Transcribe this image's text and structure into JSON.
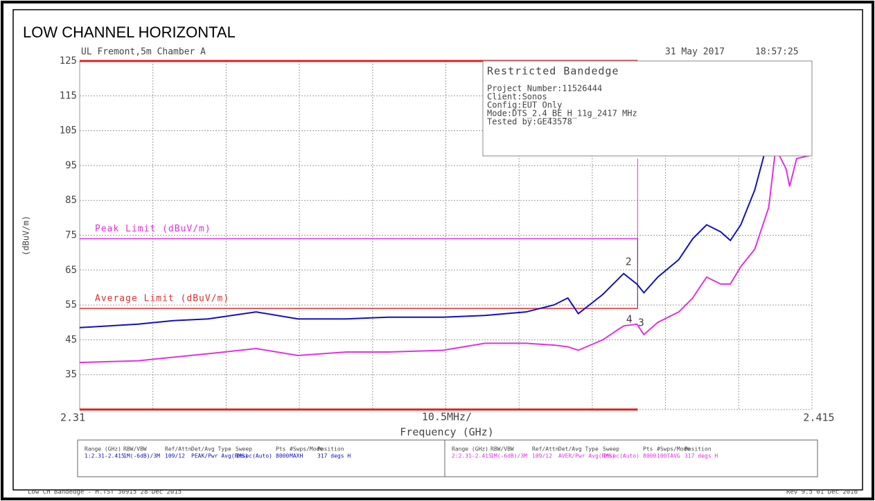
{
  "title": "LOW CHANNEL HORIZONTAL",
  "header": {
    "site": "UL Fremont,5m Chamber A",
    "date": "31 May 2017",
    "time": "18:57:25"
  },
  "chart_data": {
    "type": "line",
    "ylabel": "(dBuV/m)",
    "xlabel": "Frequency (GHz)",
    "span_label": "10.5MHz/",
    "xlim": [
      2.31,
      2.415
    ],
    "xticks": [
      2.31,
      2.415
    ],
    "x_grid_divisions": 10,
    "ylim": [
      25,
      125
    ],
    "yticks": [
      35,
      45,
      55,
      65,
      75,
      85,
      95,
      105,
      115,
      125
    ],
    "grid": true,
    "band_edge": 2.39,
    "x": [
      2.31,
      2.3184,
      2.3234,
      2.3284,
      2.3353,
      2.3413,
      2.3482,
      2.3542,
      2.3621,
      2.3681,
      2.374,
      2.378,
      2.38,
      2.3815,
      2.385,
      2.388,
      2.3899,
      2.3909,
      2.3929,
      2.3959,
      2.3979,
      2.3999,
      2.4019,
      2.4033,
      2.4048,
      2.4068,
      2.4088,
      2.4098,
      2.4113,
      2.4118,
      2.4128,
      2.415
    ],
    "series": [
      {
        "color": "#1010c0",
        "values": [
          48.5,
          49.5,
          50.5,
          51,
          53,
          51,
          51,
          51.5,
          51.5,
          52,
          53,
          55,
          57,
          52.5,
          58,
          64,
          61,
          58.5,
          63,
          68,
          74,
          78,
          76,
          73.5,
          78,
          88,
          103,
          109,
          102,
          100,
          104,
          107
        ]
      },
      {
        "color": "#e030e0",
        "values": [
          38.5,
          39,
          40,
          41,
          42.5,
          40.5,
          41.5,
          41.5,
          42,
          44,
          44,
          43.5,
          43,
          42,
          45,
          49,
          49.5,
          46.5,
          50,
          53,
          57,
          63,
          61,
          61,
          66,
          71,
          83,
          100,
          94,
          89,
          97,
          98
        ]
      }
    ],
    "limits": [
      {
        "name": "Peak Limit (dBuV/m)",
        "value": 74,
        "color": "#e030e0"
      },
      {
        "name": "Average Limit (dBuV/m)",
        "value": 54,
        "color": "#d83030"
      }
    ],
    "markers": [
      {
        "label": "2",
        "x": 2.3887,
        "y": 65
      },
      {
        "label": "4",
        "x": 2.3888,
        "y": 48.5
      },
      {
        "label": "3",
        "x": 2.3905,
        "y": 47.5
      }
    ],
    "info_box": {
      "heading": "Restricted Bandedge",
      "lines": [
        "Project Number:11526444",
        "Client:Sonos",
        "Config:EUT Only",
        "Mode:DTS_2.4_BE_H_11g_2417 MHz",
        "Tested by:GE43578"
      ]
    }
  },
  "settings_table": {
    "columns": [
      "Range (GHz)",
      "RBW/VBW",
      "Ref/Attn",
      "Det/Avg Type",
      "Sweep",
      "Pts",
      "#Swps/Mode",
      "Position"
    ],
    "rows": [
      [
        "1:2.31-2.415",
        "1M(-6dB)/3M",
        "109/12",
        "PEAK/Pwr Avg(RMS)",
        "1msec(Auto)",
        "8000",
        "MAXH",
        "317 degs H"
      ],
      [
        "2:2.31-2.415",
        "1M(-6dB)/3M",
        "109/12",
        "AVER/Pwr Avg(RMS)",
        "1msec(Auto)",
        "8000",
        "100TAVG",
        "317 degs H"
      ]
    ]
  },
  "footer": {
    "left": "Low CH Bandedge - H.TST 30915 28 Dec 2015",
    "right": "Rev 9.5 01 Dec 2016"
  }
}
